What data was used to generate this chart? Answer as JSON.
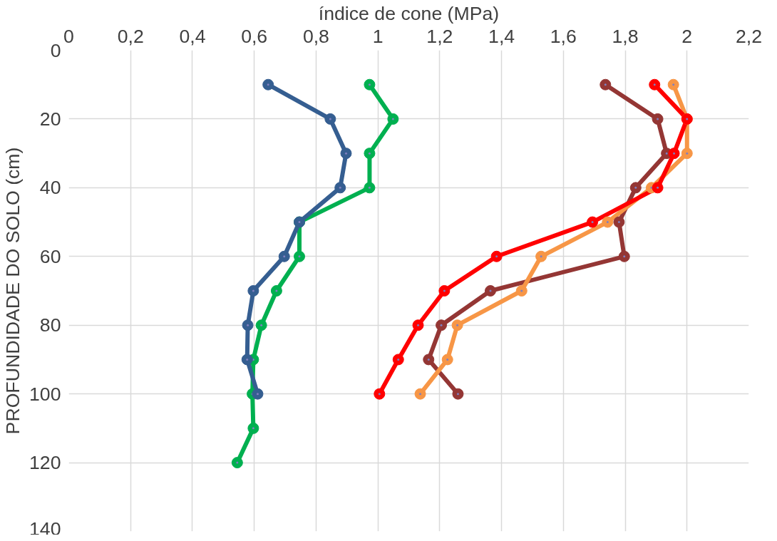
{
  "chart_data": {
    "type": "line",
    "xlabel": "índice de cone (MPa)",
    "ylabel": "PROFUNDIDADE DO SOLO (cm)",
    "xlim": [
      0,
      2.2
    ],
    "xticks": [
      {
        "value": 0,
        "label": "0"
      },
      {
        "value": 0.2,
        "label": "0,2"
      },
      {
        "value": 0.4,
        "label": "0,4"
      },
      {
        "value": 0.6,
        "label": "0,6"
      },
      {
        "value": 0.8,
        "label": "0,8"
      },
      {
        "value": 1,
        "label": "1"
      },
      {
        "value": 1.2,
        "label": "1,2"
      },
      {
        "value": 1.4,
        "label": "1,4"
      },
      {
        "value": 1.6,
        "label": "1,6"
      },
      {
        "value": 1.8,
        "label": "1,8"
      },
      {
        "value": 2,
        "label": "2"
      },
      {
        "value": 2.2,
        "label": "2,2"
      }
    ],
    "ylim": [
      140,
      0
    ],
    "yticks": [
      0,
      20,
      40,
      60,
      80,
      100,
      120,
      140
    ],
    "grid": true,
    "marker": "circle",
    "line_style": "solid",
    "series": [
      {
        "color": "#355e91",
        "x": [
          0.645,
          0.846,
          0.897,
          0.878,
          0.746,
          0.697,
          0.597,
          0.579,
          0.577,
          0.611
        ],
        "values": [
          10,
          20,
          30,
          40,
          50,
          60,
          70,
          80,
          90,
          100
        ]
      },
      {
        "color": "#00b050",
        "x": [
          0.973,
          1.049,
          0.973,
          0.973,
          0.746,
          0.746,
          0.672,
          0.623,
          0.597,
          0.594,
          0.597,
          0.545
        ],
        "values": [
          10,
          20,
          30,
          40,
          50,
          60,
          70,
          80,
          90,
          100,
          110,
          120
        ]
      },
      {
        "color": "#ff0000",
        "x": [
          1.895,
          2.0,
          1.958,
          1.905,
          1.694,
          1.384,
          1.215,
          1.13,
          1.066,
          1.005
        ],
        "values": [
          10,
          20,
          30,
          40,
          50,
          60,
          70,
          80,
          90,
          100
        ]
      },
      {
        "color": "#f79646",
        "x": [
          1.956,
          2.0,
          2.0,
          1.885,
          1.743,
          1.528,
          1.465,
          1.257,
          1.225,
          1.137
        ],
        "values": [
          10,
          20,
          30,
          40,
          50,
          60,
          70,
          80,
          90,
          100
        ]
      },
      {
        "color": "#943634",
        "x": [
          1.736,
          1.905,
          1.934,
          1.834,
          1.78,
          1.797,
          1.364,
          1.205,
          1.164,
          1.259
        ],
        "values": [
          10,
          20,
          30,
          40,
          50,
          60,
          70,
          80,
          90,
          100
        ]
      }
    ]
  }
}
